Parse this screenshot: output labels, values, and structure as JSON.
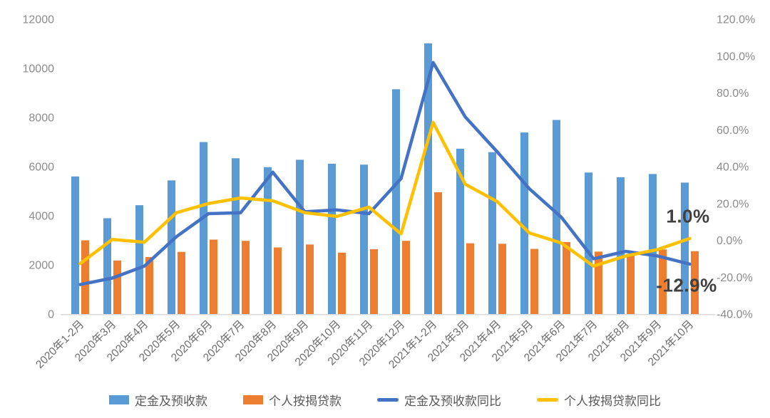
{
  "chart_data": {
    "type": "combo",
    "categories": [
      "2020年1-2月",
      "2020年3月",
      "2020年4月",
      "2020年5月",
      "2020年6月",
      "2020年7月",
      "2020年8月",
      "2020年9月",
      "2020年10月",
      "2020年11月",
      "2020年12月",
      "2021年1-2月",
      "2021年3月",
      "2021年4月",
      "2021年5月",
      "2021年6月",
      "2021年7月",
      "2021年8月",
      "2021年9月",
      "2021年10月"
    ],
    "series": [
      {
        "name": "定金及预收款",
        "type": "bar",
        "axis": "left",
        "color": "#5B9BD5",
        "values": [
          5600,
          3900,
          4430,
          5440,
          7000,
          6340,
          5980,
          6280,
          6120,
          6080,
          9150,
          11020,
          6730,
          6590,
          7390,
          7900,
          5760,
          5570,
          5700,
          5350
        ]
      },
      {
        "name": "个人按揭贷款",
        "type": "bar",
        "axis": "left",
        "color": "#ED7D31",
        "values": [
          3000,
          2180,
          2320,
          2530,
          3030,
          2980,
          2710,
          2830,
          2500,
          2640,
          2980,
          4960,
          2880,
          2860,
          2650,
          2930,
          2540,
          2400,
          2630,
          2560
        ]
      },
      {
        "name": "定金及预收款同比",
        "type": "line",
        "axis": "right",
        "color": "#4472C4",
        "values": [
          -24,
          -20.5,
          -14,
          2,
          14.5,
          15,
          37,
          15.5,
          16.5,
          14.5,
          33.5,
          96.5,
          67,
          48,
          28,
          12.5,
          -10,
          -6,
          -8.5,
          -12.9
        ]
      },
      {
        "name": "个人按揭贷款同比",
        "type": "line",
        "axis": "right",
        "color": "#FFC000",
        "values": [
          -12.6,
          0.5,
          -1,
          15,
          20,
          23,
          21.5,
          15,
          13,
          18,
          3.5,
          64,
          30.5,
          21,
          4,
          -1.5,
          -14,
          -8.5,
          -5,
          1
        ]
      }
    ],
    "left_axis": {
      "min": 0,
      "max": 12000,
      "step": 2000,
      "ticks": [
        "12000",
        "10000",
        "8000",
        "6000",
        "4000",
        "2000",
        "0"
      ]
    },
    "right_axis": {
      "min": -40,
      "max": 120,
      "step": 20,
      "ticks": [
        "120.0%",
        "100.0%",
        "80.0%",
        "60.0%",
        "40.0%",
        "20.0%",
        "0.0%",
        "-20.0%",
        "-40.0%"
      ]
    },
    "annotations": [
      {
        "text": "1.0%",
        "series": "个人按揭贷款同比",
        "x": 965,
        "y": 304
      },
      {
        "text": "-12.9%",
        "series": "定金及预收款同比",
        "x": 963,
        "y": 401
      }
    ],
    "legend": [
      "定金及预收款",
      "个人按揭贷款",
      "定金及预收款同比",
      "个人按揭贷款同比"
    ],
    "legend_position": "bottom",
    "grid": false,
    "colors": {
      "axis_line": "#D9D9D9",
      "axis_text": "#8c8c8c",
      "annotation": "#404040",
      "background": "#ffffff"
    }
  }
}
